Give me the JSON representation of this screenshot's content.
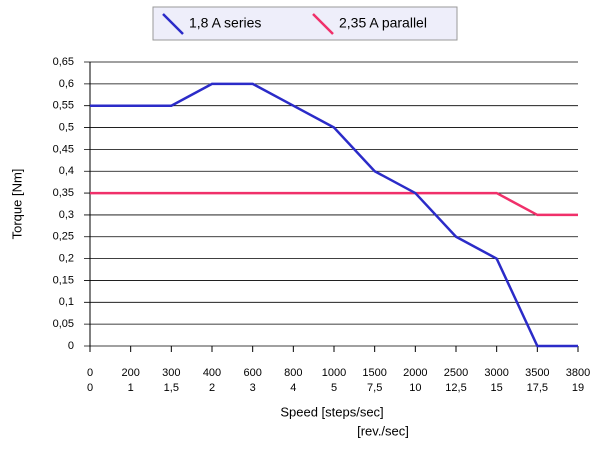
{
  "chart_data": {
    "type": "line",
    "categories": [
      [
        "0",
        "0"
      ],
      [
        "200",
        "1"
      ],
      [
        "300",
        "1,5"
      ],
      [
        "400",
        "2"
      ],
      [
        "600",
        "3"
      ],
      [
        "800",
        "4"
      ],
      [
        "1000",
        "5"
      ],
      [
        "1500",
        "7,5"
      ],
      [
        "2000",
        "10"
      ],
      [
        "2500",
        "12,5"
      ],
      [
        "3000",
        "15"
      ],
      [
        "3500",
        "17,5"
      ],
      [
        "3800",
        "19"
      ]
    ],
    "series": [
      {
        "name": "1,8 A series",
        "color": "#2b2bc8",
        "values": [
          0.55,
          0.55,
          0.55,
          0.6,
          0.6,
          0.55,
          0.5,
          0.4,
          0.35,
          0.25,
          0.2,
          0,
          0
        ]
      },
      {
        "name": "2,35 A parallel",
        "color": "#f0306a",
        "values": [
          0.35,
          0.35,
          0.35,
          0.35,
          0.35,
          0.35,
          0.35,
          0.35,
          0.35,
          0.35,
          0.35,
          0.3,
          0.3
        ]
      }
    ],
    "ylabel": "Torque [Nm]",
    "xlabel": "Speed [steps/sec]",
    "xlabel2": "[rev./sec]",
    "ylim": [
      0,
      0.65
    ],
    "yticks": [
      0,
      {
        "value": 0.05,
        "label": "0,05"
      },
      {
        "value": 0.1,
        "label": "0,1"
      },
      {
        "value": 0.15,
        "label": "0,15"
      },
      {
        "value": 0.2,
        "label": "0,2"
      },
      {
        "value": 0.25,
        "label": "0,25"
      },
      {
        "value": 0.3,
        "label": "0,3"
      },
      {
        "value": 0.35,
        "label": "0,35"
      },
      {
        "value": 0.4,
        "label": "0,4"
      },
      {
        "value": 0.45,
        "label": "0,45"
      },
      {
        "value": 0.5,
        "label": "0,5"
      },
      {
        "value": 0.55,
        "label": "0,55"
      },
      {
        "value": 0.6,
        "label": "0,6"
      },
      {
        "value": 0.65,
        "label": "0,65"
      }
    ],
    "grid": true,
    "legend": "top"
  }
}
